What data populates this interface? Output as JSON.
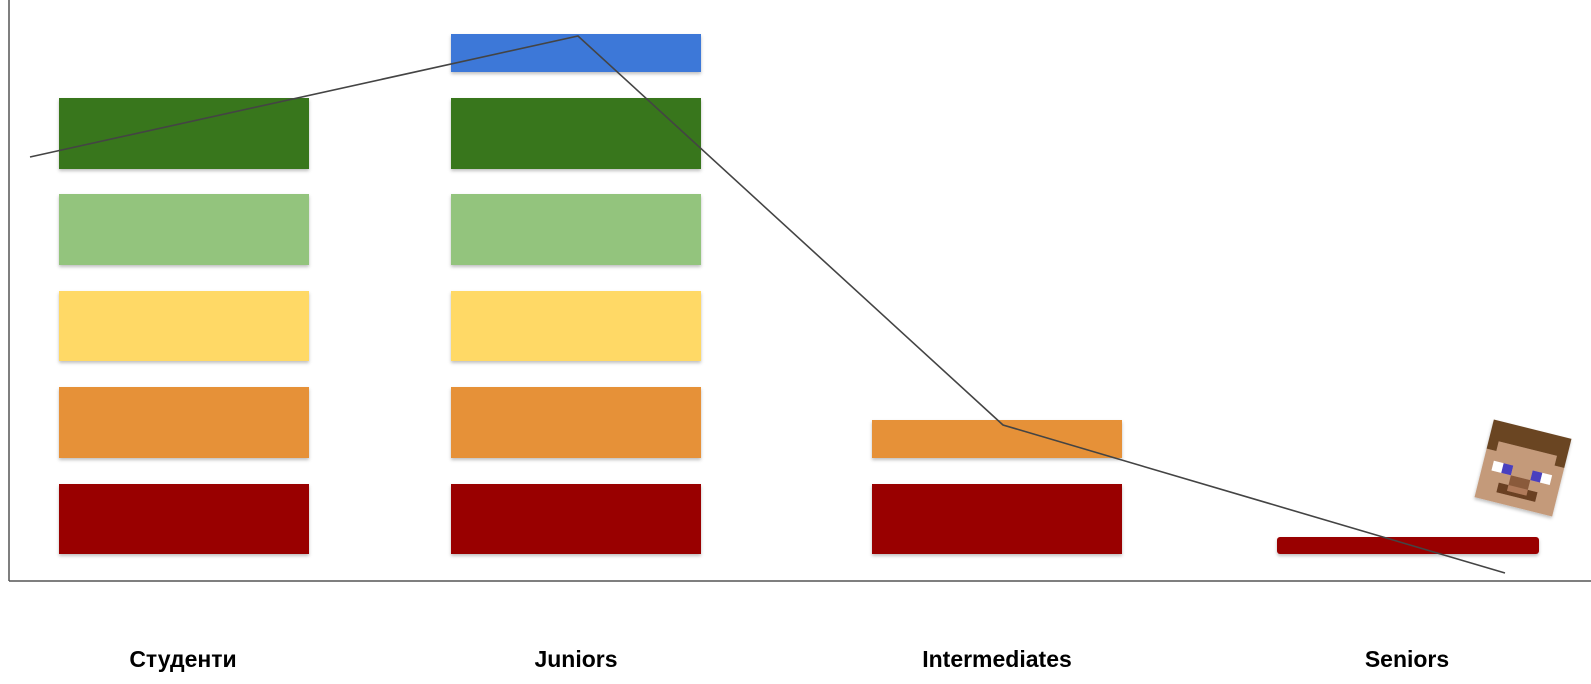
{
  "columns": [
    {
      "label": "Студенти",
      "blocks": [
        "dark-red",
        "orange",
        "yellow",
        "light-green",
        "dark-green"
      ]
    },
    {
      "label": "Juniors",
      "blocks": [
        "dark-red",
        "orange",
        "yellow",
        "light-green",
        "dark-green",
        "blue"
      ]
    },
    {
      "label": "Intermediates",
      "blocks": [
        "dark-red",
        "orange"
      ]
    },
    {
      "label": "Seniors",
      "blocks": [
        "dark-red"
      ]
    }
  ],
  "colors": {
    "dark-red": "#990000",
    "orange": "#e69138",
    "yellow": "#ffd966",
    "light-green": "#93c47d",
    "dark-green": "#38761d",
    "blue": "#3c78d8",
    "axis": "#555555",
    "trend": "#444444"
  },
  "icons": {
    "avatar": "minecraft-steve-head-icon"
  }
}
